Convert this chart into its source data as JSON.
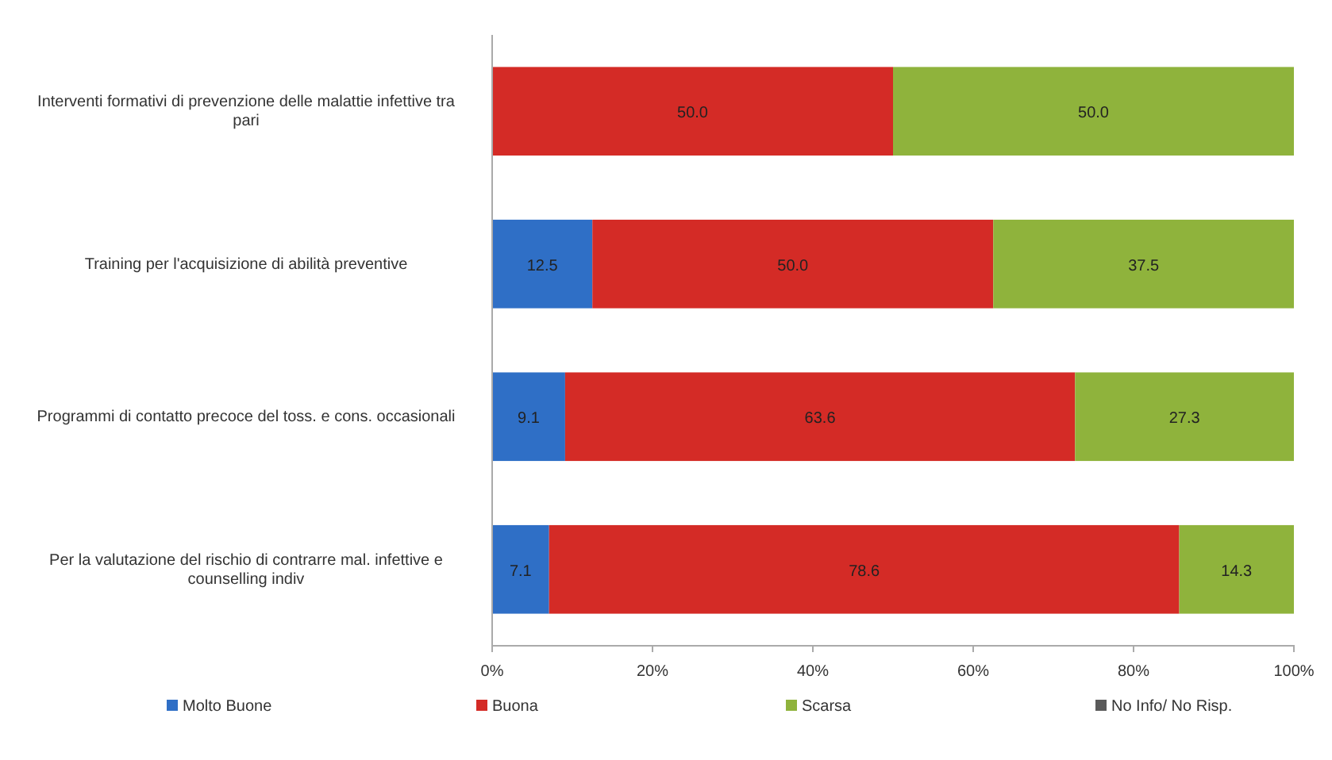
{
  "chart_data": {
    "type": "bar",
    "orientation": "horizontal",
    "stacked": true,
    "categories": [
      "Interventi formativi di prevenzione delle malattie infettive tra pari",
      "Training per l'acquisizione di abilità preventive",
      "Programmi di contatto precoce del toss. e cons. occasionali",
      "Per la valutazione del rischio di contrarre mal. infettive e counselling indiv"
    ],
    "series": [
      {
        "name": "Molto Buone",
        "color": "#2f6fc6",
        "values": [
          null,
          12.5,
          9.1,
          7.1
        ],
        "value_labels": [
          null,
          "12.5",
          "9.1",
          "7.1"
        ]
      },
      {
        "name": "Buona",
        "color": "#d42b26",
        "values": [
          50.0,
          50.0,
          63.6,
          78.6
        ],
        "value_labels": [
          "50.0",
          "50.0",
          "63.6",
          "78.6"
        ]
      },
      {
        "name": "Scarsa",
        "color": "#8fb33c",
        "values": [
          50.0,
          37.5,
          27.3,
          14.3
        ],
        "value_labels": [
          "50.0",
          "37.5",
          "27.3",
          "14.3"
        ]
      },
      {
        "name": "No Info/ No Risp.",
        "color": "#5a5a5a",
        "values": [
          null,
          null,
          null,
          null
        ]
      }
    ],
    "xlim": [
      0,
      100
    ],
    "xticks": [
      {
        "value": 0,
        "label": "0%"
      },
      {
        "value": 20,
        "label": "20%"
      },
      {
        "value": 40,
        "label": "40%"
      },
      {
        "value": 60,
        "label": "60%"
      },
      {
        "value": 80,
        "label": "80%"
      },
      {
        "value": 100,
        "label": "100%"
      }
    ],
    "legend": "bottom"
  }
}
